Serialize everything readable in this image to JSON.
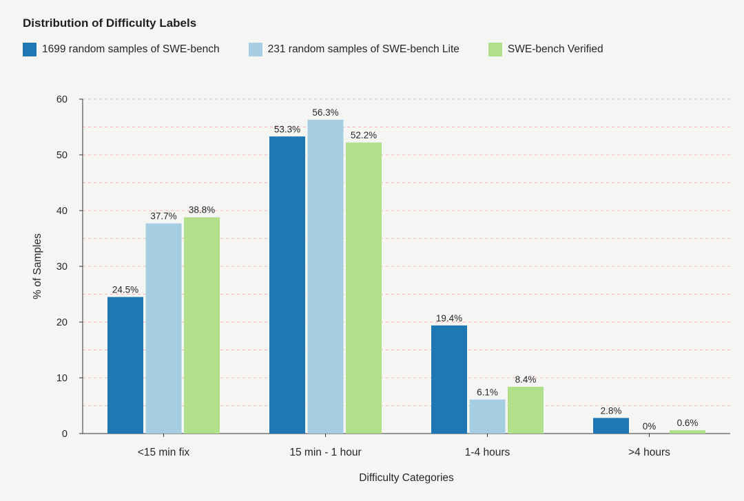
{
  "chart_data": {
    "type": "bar",
    "title": "Distribution of Difficulty Labels",
    "xlabel": "Difficulty Categories",
    "ylabel": "% of Samples",
    "ylim": [
      0,
      60
    ],
    "yticks": [
      0,
      10,
      20,
      30,
      40,
      50,
      60
    ],
    "grid": true,
    "legend_position": "top-left",
    "categories": [
      "<15 min fix",
      "15 min - 1 hour",
      "1-4 hours",
      ">4 hours"
    ],
    "series": [
      {
        "name": "1699 random samples of SWE-bench",
        "color": "#1f77b4",
        "values": [
          24.5,
          53.3,
          19.4,
          2.8
        ],
        "labels": [
          "24.5%",
          "53.3%",
          "19.4%",
          "2.8%"
        ]
      },
      {
        "name": "231 random samples of SWE-bench Lite",
        "color": "#a6cee3",
        "values": [
          37.7,
          56.3,
          6.1,
          0
        ],
        "labels": [
          "37.7%",
          "56.3%",
          "6.1%",
          "0%"
        ]
      },
      {
        "name": "SWE-bench Verified",
        "color": "#b2df8a",
        "values": [
          38.8,
          52.2,
          8.4,
          0.6
        ],
        "labels": [
          "38.8%",
          "52.2%",
          "8.4%",
          "0.6%"
        ]
      }
    ]
  }
}
